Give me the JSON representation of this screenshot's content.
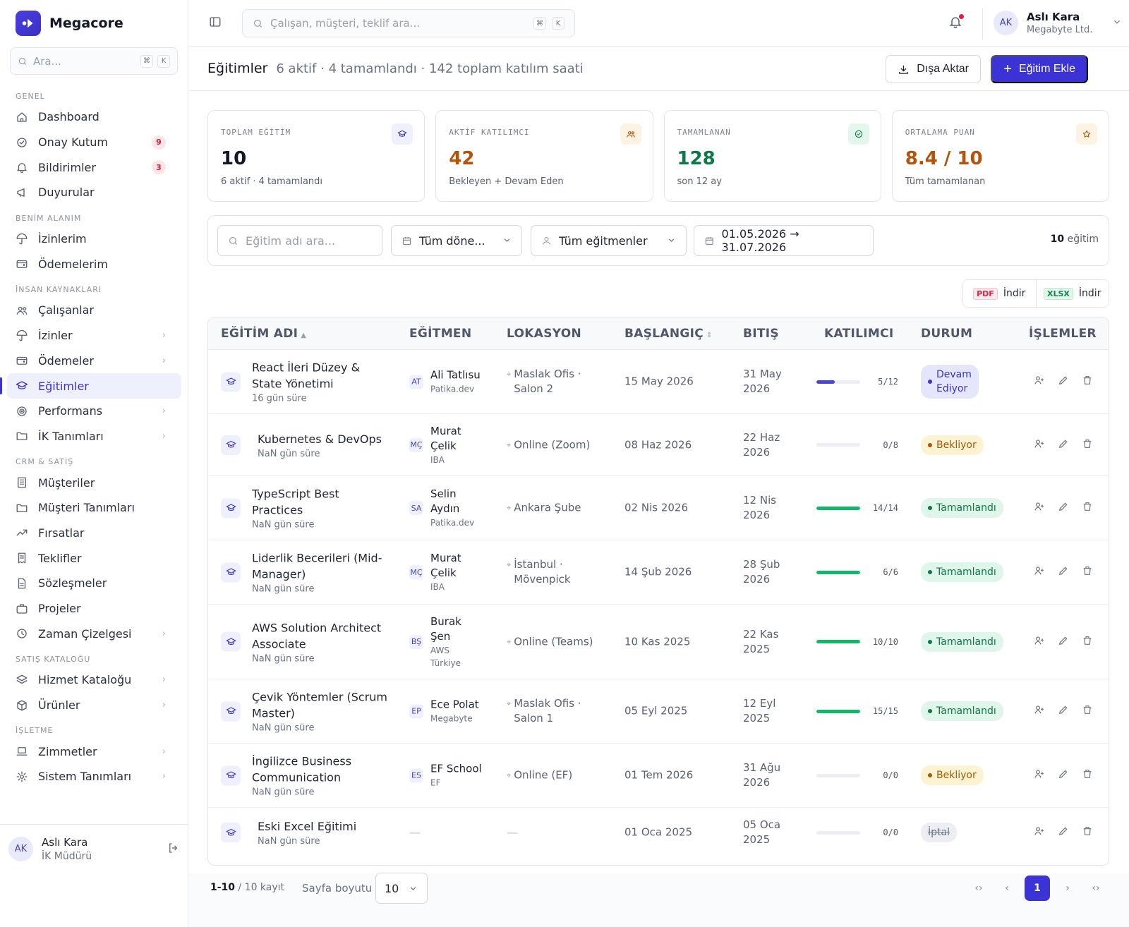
{
  "brand": {
    "name": "Megacore"
  },
  "sidebar": {
    "search_placeholder": "Ara...",
    "kbd": [
      "⌘",
      "K"
    ],
    "sections": [
      {
        "title": "GENEL",
        "items": [
          {
            "label": "Dashboard",
            "icon": "home-icon"
          },
          {
            "label": "Onay Kutum",
            "icon": "check-circle-icon",
            "badge": "9"
          },
          {
            "label": "Bildirimler",
            "icon": "bell-icon",
            "badge": "3"
          },
          {
            "label": "Duyurular",
            "icon": "megaphone-icon"
          }
        ]
      },
      {
        "title": "BENİM ALANIM",
        "items": [
          {
            "label": "İzinlerim",
            "icon": "umbrella-icon"
          },
          {
            "label": "Ödemelerim",
            "icon": "wallet-icon"
          }
        ]
      },
      {
        "title": "İNSAN KAYNAKLARI",
        "items": [
          {
            "label": "Çalışanlar",
            "icon": "users-icon"
          },
          {
            "label": "İzinler",
            "icon": "umbrella-icon",
            "chevron": true
          },
          {
            "label": "Ödemeler",
            "icon": "wallet-icon",
            "chevron": true
          },
          {
            "label": "Eğitimler",
            "icon": "graduation-cap-icon",
            "active": true
          },
          {
            "label": "Performans",
            "icon": "target-icon",
            "chevron": true
          },
          {
            "label": "İK Tanımları",
            "icon": "folder-icon",
            "chevron": true
          }
        ]
      },
      {
        "title": "CRM & SATIŞ",
        "items": [
          {
            "label": "Müşteriler",
            "icon": "building-icon"
          },
          {
            "label": "Müşteri Tanımları",
            "icon": "folder-icon"
          },
          {
            "label": "Fırsatlar",
            "icon": "trending-icon"
          },
          {
            "label": "Teklifler",
            "icon": "receipt-icon"
          },
          {
            "label": "Sözleşmeler",
            "icon": "document-icon"
          },
          {
            "label": "Projeler",
            "icon": "briefcase-icon"
          },
          {
            "label": "Zaman Çizelgesi",
            "icon": "clock-icon",
            "chevron": true
          }
        ]
      },
      {
        "title": "SATIŞ KATALOĞU",
        "items": [
          {
            "label": "Hizmet Kataloğu",
            "icon": "layers-icon",
            "chevron": true
          },
          {
            "label": "Ürünler",
            "icon": "box-icon",
            "chevron": true
          }
        ]
      },
      {
        "title": "İŞLETME",
        "items": [
          {
            "label": "Zimmetler",
            "icon": "laptop-icon",
            "chevron": true
          },
          {
            "label": "Sistem Tanımları",
            "icon": "gear-icon",
            "chevron": true
          }
        ]
      }
    ],
    "user": {
      "initials": "AK",
      "name": "Aslı Kara",
      "role": "İK Müdürü"
    }
  },
  "topbar": {
    "search_placeholder": "Çalışan, müşteri, teklif ara...",
    "kbd": [
      "⌘",
      "K"
    ],
    "user": {
      "initials": "AK",
      "name": "Aslı Kara",
      "org": "Megabyte Ltd."
    }
  },
  "page": {
    "title": "Eğitimler",
    "subtitle": "6 aktif · 4 tamamlandı · 142 toplam katılım saati",
    "export_label": "Dışa Aktar",
    "add_label": "Eğitim Ekle"
  },
  "stats": [
    {
      "label": "TOPLAM EĞİTİM",
      "value": "10",
      "sub": "6 aktif · 4 tamamlandı",
      "color": "#141826",
      "icon": "graduation-cap-icon",
      "icon_bg": "#eef0fd",
      "icon_color": "#3c33c9"
    },
    {
      "label": "AKTİF KATILIMCI",
      "value": "42",
      "sub": "Bekleyen + Devam Eden",
      "color": "#b4530a",
      "icon": "users-icon",
      "icon_bg": "#fdf3e3",
      "icon_color": "#b4530a"
    },
    {
      "label": "TAMAMLANAN",
      "value": "128",
      "sub": "son 12 ay",
      "color": "#0b7a48",
      "icon": "check-circle-icon",
      "icon_bg": "#e3f7ec",
      "icon_color": "#0b7a48"
    },
    {
      "label": "ORTALAMA PUAN",
      "value": "8.4 / 10",
      "sub": "Tüm tamamlanan",
      "color": "#b4530a",
      "icon": "star-icon",
      "icon_bg": "#fdf3e3",
      "icon_color": "#b4530a"
    }
  ],
  "filters": {
    "search_placeholder": "Eğitim adı ara...",
    "period": "Tüm döne...",
    "instructor": "Tüm eğitmenler",
    "date_range": "01.05.2026 → 31.07.2026",
    "count_value": "10",
    "count_label": "eğitim"
  },
  "downloads": {
    "pdf_tag": "PDF",
    "pdf_label": "İndir",
    "xlsx_tag": "XLSX",
    "xlsx_label": "İndir"
  },
  "table": {
    "headers": [
      "EĞİTİM ADI",
      "EĞİTMEN",
      "LOKASYON",
      "BAŞLANGIÇ",
      "BITIŞ",
      "KATILIMCI",
      "DURUM",
      "İŞLEMLER"
    ],
    "rows": [
      {
        "name": [
          "React İleri Düzey &",
          "State Yönetimi"
        ],
        "duration": "16 gün süre",
        "ins_initials": "AT",
        "ins_name": [
          "Ali Tatlısu"
        ],
        "ins_org": [
          "Patika.dev"
        ],
        "location": [
          "Maslak Ofis ·",
          "Salon 2"
        ],
        "start": "15 May 2026",
        "end": [
          "31 May",
          "2026"
        ],
        "participants": "5/12",
        "fill": 0.42,
        "bar_color": "#4b46d8",
        "status": [
          "Devam",
          "Ediyor"
        ],
        "status_type": "prog-s"
      },
      {
        "name": [
          "Kubernetes & DevOps"
        ],
        "duration": "NaN gün süre",
        "ins_initials": "MÇ",
        "ins_name": [
          "Murat",
          "Çelik"
        ],
        "ins_org": [
          "IBA"
        ],
        "location": [
          "Online (Zoom)"
        ],
        "start": "08 Haz 2026",
        "end": [
          "22 Haz",
          "2026"
        ],
        "participants": "0/8",
        "fill": 0,
        "bar_color": "#4b46d8",
        "status": [
          "Bekliyor"
        ],
        "status_type": "wait"
      },
      {
        "name": [
          "TypeScript Best",
          "Practices"
        ],
        "duration": "NaN gün süre",
        "ins_initials": "SA",
        "ins_name": [
          "Selin",
          "Aydın"
        ],
        "ins_org": [
          "Patika.dev"
        ],
        "location": [
          "Ankara Şube"
        ],
        "start": "02 Nis 2026",
        "end": [
          "12 Nis",
          "2026"
        ],
        "participants": "14/14",
        "fill": 1,
        "bar_color": "#12b76a",
        "status": [
          "Tamamlandı"
        ],
        "status_type": "done"
      },
      {
        "name": [
          "Liderlik Becerileri (Mid-",
          "Manager)"
        ],
        "duration": "NaN gün süre",
        "ins_initials": "MÇ",
        "ins_name": [
          "Murat",
          "Çelik"
        ],
        "ins_org": [
          "IBA"
        ],
        "location": [
          "İstanbul ·",
          "Mövenpick"
        ],
        "start": "14 Şub 2026",
        "end": [
          "28 Şub",
          "2026"
        ],
        "participants": "6/6",
        "fill": 1,
        "bar_color": "#12b76a",
        "status": [
          "Tamamlandı"
        ],
        "status_type": "done"
      },
      {
        "name": [
          "AWS Solution Architect",
          "Associate"
        ],
        "duration": "NaN gün süre",
        "ins_initials": "BŞ",
        "ins_name": [
          "Burak",
          "Şen"
        ],
        "ins_org": [
          "AWS",
          "Türkiye"
        ],
        "location": [
          "Online (Teams)"
        ],
        "start": "10 Kas 2025",
        "end": [
          "22 Kas",
          "2025"
        ],
        "participants": "10/10",
        "fill": 1,
        "bar_color": "#12b76a",
        "status": [
          "Tamamlandı"
        ],
        "status_type": "done"
      },
      {
        "name": [
          "Çevik Yöntemler (Scrum",
          "Master)"
        ],
        "duration": "NaN gün süre",
        "ins_initials": "EP",
        "ins_name": [
          "Ece Polat"
        ],
        "ins_org": [
          "Megabyte"
        ],
        "location": [
          "Maslak Ofis ·",
          "Salon 1"
        ],
        "start": "05 Eyl 2025",
        "end": [
          "12 Eyl",
          "2025"
        ],
        "participants": "15/15",
        "fill": 1,
        "bar_color": "#12b76a",
        "status": [
          "Tamamlandı"
        ],
        "status_type": "done"
      },
      {
        "name": [
          "İngilizce Business",
          "Communication"
        ],
        "duration": "NaN gün süre",
        "ins_initials": "ES",
        "ins_name": [
          "EF School"
        ],
        "ins_org": [
          "EF"
        ],
        "location": [
          "Online (EF)"
        ],
        "start": "01 Tem 2026",
        "end": [
          "31 Ağu",
          "2026"
        ],
        "participants": "0/0",
        "fill": 0,
        "bar_color": "#4b46d8",
        "status": [
          "Bekliyor"
        ],
        "status_type": "wait"
      },
      {
        "name": [
          "Eski Excel Eğitimi"
        ],
        "duration": "NaN gün süre",
        "ins_initials": "",
        "ins_name": [
          "—"
        ],
        "ins_org": [],
        "location": [
          "—"
        ],
        "start": "01 Oca 2025",
        "end": [
          "05 Oca",
          "2025"
        ],
        "participants": "0/0",
        "fill": 0,
        "bar_color": "#4b46d8",
        "status": [
          "İptal"
        ],
        "status_type": "cancel"
      }
    ]
  },
  "pagination": {
    "range": "1-10",
    "total": "/ 10 kayıt",
    "size_label": "Sayfa boyutu",
    "size": "10",
    "current": "1"
  }
}
